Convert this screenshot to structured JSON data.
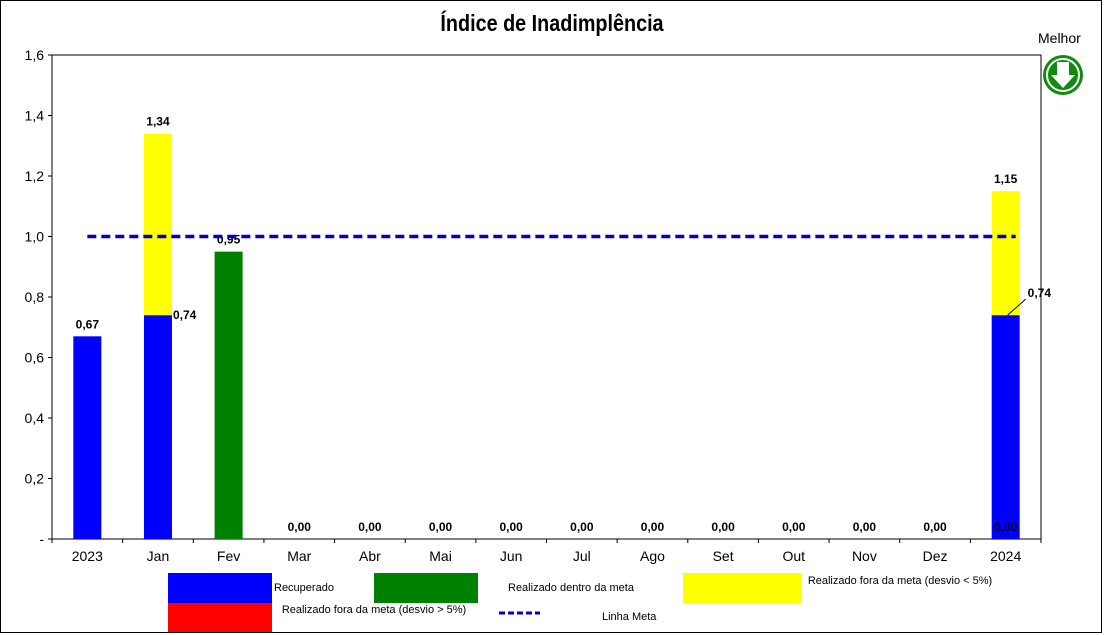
{
  "title": "Índice de Inadimplência",
  "better_direction": {
    "label": "Melhor",
    "icon": "arrow-down-icon",
    "color": "#108a10"
  },
  "chart_data": {
    "type": "bar",
    "stacked": true,
    "title": "Índice de Inadimplência",
    "categories": [
      "2023",
      "Jan",
      "Fev",
      "Mar",
      "Abr",
      "Mai",
      "Jun",
      "Jul",
      "Ago",
      "Set",
      "Out",
      "Nov",
      "Dez",
      "2024"
    ],
    "ylim": [
      0,
      1.6
    ],
    "yticks": [
      "-",
      "0,2",
      "0,4",
      "0,6",
      "0,8",
      "1,0",
      "1,2",
      "1,4",
      "1,6"
    ],
    "grid": false,
    "series": [
      {
        "name": "Recuperado",
        "color": "#0000ff",
        "values": [
          0.67,
          0.74,
          0,
          0,
          0,
          0,
          0,
          0,
          0,
          0,
          0,
          0,
          0,
          0.74
        ]
      },
      {
        "name": "Realizado dentro da meta",
        "color": "#008000",
        "values": [
          0,
          0,
          0.95,
          0,
          0,
          0,
          0,
          0,
          0,
          0,
          0,
          0,
          0,
          0
        ]
      },
      {
        "name": "Realizado fora da meta (desvio < 5%)",
        "color": "#ffff00",
        "values": [
          0,
          0.6,
          0,
          0,
          0,
          0,
          0,
          0,
          0,
          0,
          0,
          0,
          0,
          0.41
        ]
      },
      {
        "name": "Realizado fora da meta (desvio > 5%)",
        "color": "#ff0000",
        "values": [
          0,
          0,
          0,
          0,
          0,
          0,
          0,
          0,
          0,
          0,
          0,
          0,
          0,
          0
        ]
      }
    ],
    "total_labels": [
      "0,67",
      "1,34",
      "0,95",
      "0,00",
      "0,00",
      "0,00",
      "0,00",
      "0,00",
      "0,00",
      "0,00",
      "0,00",
      "0,00",
      "0,00",
      "1,15"
    ],
    "recuperado_labels": [
      {
        "category": "Jan",
        "text": "0,74"
      },
      {
        "category": "2024",
        "text": "0,74"
      }
    ],
    "bottom_label_2024": "0,00",
    "target_line": {
      "name": "Linha Meta",
      "value": 1.0,
      "color": "#0000cc",
      "style": "dotted"
    }
  },
  "legend": {
    "recuperado": "Recuperado",
    "dentro": "Realizado dentro da meta",
    "fora_menor": "Realizado fora da meta (desvio < 5%)",
    "fora_maior": "Realizado fora da meta (desvio > 5%)",
    "meta": "Linha Meta"
  }
}
